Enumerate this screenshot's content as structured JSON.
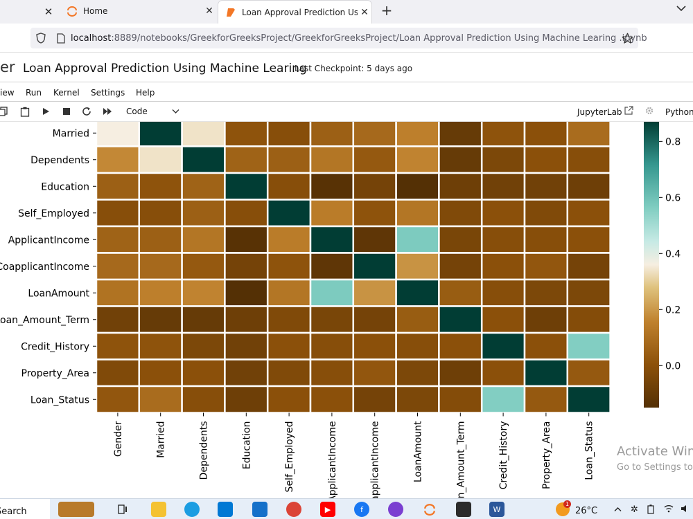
{
  "browser": {
    "tabs": [
      {
        "label": "Home",
        "active": false
      },
      {
        "label": "Loan Approval Prediction Using",
        "active": true
      }
    ],
    "url_host": "localhost",
    "url_rest": ":8889/notebooks/GreekforGreeksProject/GreekforGreeksProject/Loan Approval Prediction Using Machine Learing .ipynb"
  },
  "jupyter": {
    "logo_fragment": "er",
    "notebook_title": "Loan Approval Prediction Using Machine Learing",
    "checkpoint": "Last Checkpoint: 5 days ago",
    "menu": [
      "iew",
      "Run",
      "Kernel",
      "Settings",
      "Help"
    ],
    "cell_type": "Code",
    "jupyterlab_label": "JupyterLab",
    "kernel_label": "Python"
  },
  "chart_data": {
    "type": "heatmap",
    "row_labels": [
      "Married",
      "Dependents",
      "Education",
      "Self_Employed",
      "ApplicantIncome",
      "CoapplicantIncome",
      "LoanAmount",
      "Loan_Amount_Term",
      "Credit_History",
      "Property_Area",
      "Loan_Status"
    ],
    "col_labels": [
      "Gender",
      "Married",
      "Dependents",
      "Education",
      "Self_Employed",
      "ApplicantIncome",
      "CoapplicantIncome",
      "LoanAmount",
      "Loan_Amount_Term",
      "Credit_History",
      "Property_Area",
      "Loan_Status"
    ],
    "values": [
      [
        0.36,
        1.0,
        0.34,
        0.01,
        -0.01,
        0.05,
        0.08,
        0.15,
        -0.1,
        0.01,
        0.0,
        0.09
      ],
      [
        0.17,
        0.34,
        1.0,
        0.06,
        0.05,
        0.12,
        0.03,
        0.16,
        -0.1,
        -0.04,
        0.0,
        -0.01
      ],
      [
        0.05,
        0.01,
        0.06,
        1.0,
        -0.01,
        -0.14,
        -0.06,
        -0.17,
        -0.08,
        -0.07,
        -0.07,
        -0.08
      ],
      [
        -0.01,
        -0.01,
        0.05,
        -0.01,
        1.0,
        0.14,
        0.01,
        0.12,
        -0.03,
        0.0,
        -0.03,
        -0.0
      ],
      [
        0.06,
        0.05,
        0.12,
        -0.14,
        0.14,
        1.0,
        -0.12,
        0.57,
        -0.05,
        -0.01,
        -0.01,
        -0.0
      ],
      [
        0.08,
        0.08,
        0.03,
        -0.06,
        0.01,
        -0.12,
        1.0,
        0.19,
        -0.06,
        -0.0,
        0.02,
        -0.06
      ],
      [
        0.11,
        0.15,
        0.16,
        -0.17,
        0.12,
        0.57,
        0.19,
        1.0,
        0.04,
        -0.01,
        -0.04,
        -0.04
      ],
      [
        -0.07,
        -0.1,
        -0.1,
        -0.08,
        -0.03,
        -0.05,
        -0.06,
        0.04,
        1.0,
        0.0,
        -0.08,
        -0.02
      ],
      [
        0.01,
        0.01,
        -0.04,
        -0.07,
        0.0,
        -0.01,
        -0.0,
        -0.01,
        0.0,
        1.0,
        -0.0,
        0.56
      ],
      [
        -0.03,
        0.0,
        0.0,
        -0.07,
        -0.03,
        -0.01,
        0.02,
        -0.04,
        -0.08,
        -0.0,
        1.0,
        0.03
      ],
      [
        0.02,
        0.09,
        -0.01,
        -0.08,
        -0.0,
        -0.0,
        -0.06,
        -0.04,
        -0.02,
        0.56,
        0.03,
        1.0
      ]
    ],
    "colorbar": {
      "min": -0.15,
      "max": 0.87,
      "ticks": [
        "0.8",
        "0.6",
        "0.4",
        "0.2",
        "0.0"
      ],
      "tick_values": [
        0.8,
        0.6,
        0.4,
        0.2,
        0.0
      ]
    },
    "colormap": "BrBG"
  },
  "watermark": {
    "line1": "Activate Windows",
    "line2": "Go to Settings to activate Windows."
  },
  "taskbar": {
    "search": "Search",
    "temperature": "26°C",
    "weather_badge": "1"
  }
}
